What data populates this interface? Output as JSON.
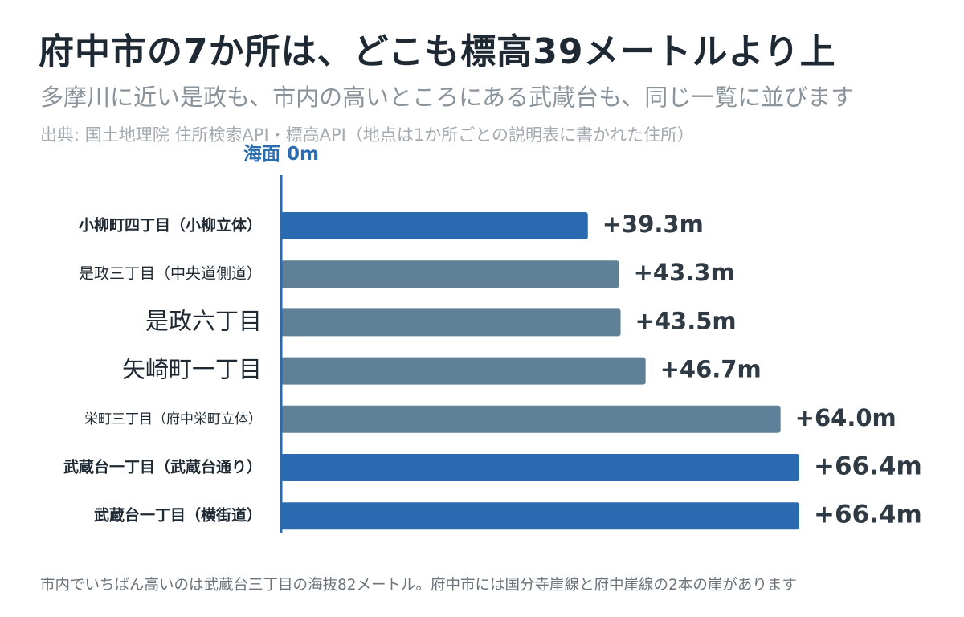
{
  "title": "府中市の7か所は、どこも標高39メートルより上",
  "subtitle": "多摩川に近い是政も、市内の高いところにある武蔵台も、同じ一覧に並びます",
  "source": "出典: 国土地理院 住所検索API・標高API（地点は1か所ごとの説明表に書かれた住所）",
  "footnote": "市内でいちばん高いのは武蔵台三丁目の海抜82メートル。府中市には国分寺崖線と府中崖線の2本の崖があります",
  "colors": {
    "highlight": "#2a6ab0",
    "default": "#5f8096",
    "baseline": "#2a6ab0"
  },
  "chart_data": {
    "type": "bar",
    "orientation": "horizontal",
    "baseline_label": "海面 0m",
    "xlim": [
      0,
      66.4
    ],
    "categories": [
      "小柳町四丁目（小柳立体）",
      "是政三丁目（中央道側道）",
      "是政六丁目",
      "矢崎町一丁目",
      "栄町三丁目（府中栄町立体）",
      "武蔵台一丁目（武蔵台通り）",
      "武蔵台一丁目（横街道）"
    ],
    "values": [
      39.3,
      43.3,
      43.5,
      46.7,
      64.0,
      66.4,
      66.4
    ],
    "value_labels": [
      "+39.3m",
      "+43.3m",
      "+43.5m",
      "+46.7m",
      "+64.0m",
      "+66.4m",
      "+66.4m"
    ],
    "highlighted": [
      true,
      false,
      false,
      false,
      false,
      true,
      true
    ]
  }
}
